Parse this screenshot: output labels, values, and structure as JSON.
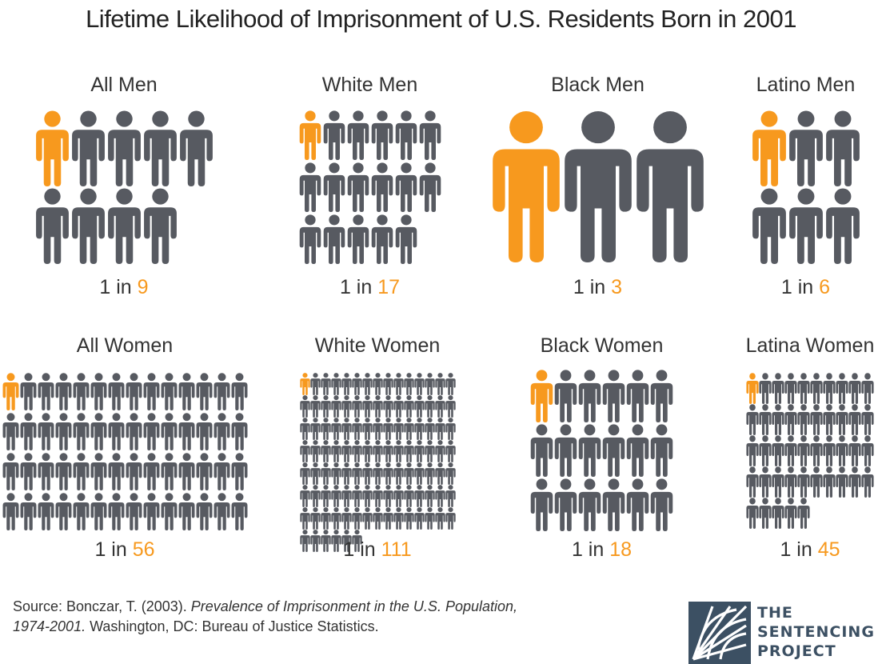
{
  "title": "Lifetime Likelihood of Imprisonment of U.S. Residents Born in 2001",
  "colors": {
    "highlight": "#F7991E",
    "figure": "#575A61",
    "logo": "#3C5063",
    "text": "#333333"
  },
  "chart_data": [
    {
      "type": "pictogram",
      "label": "All Men",
      "ratio_prefix": "1 in",
      "ratio_value": 9,
      "highlighted": 1,
      "total": 9
    },
    {
      "type": "pictogram",
      "label": "White Men",
      "ratio_prefix": "1 in",
      "ratio_value": 17,
      "highlighted": 1,
      "total": 17
    },
    {
      "type": "pictogram",
      "label": "Black Men",
      "ratio_prefix": "1 in",
      "ratio_value": 3,
      "highlighted": 1,
      "total": 3
    },
    {
      "type": "pictogram",
      "label": "Latino Men",
      "ratio_prefix": "1 in",
      "ratio_value": 6,
      "highlighted": 1,
      "total": 6
    },
    {
      "type": "pictogram",
      "label": "All Women",
      "ratio_prefix": "1 in",
      "ratio_value": 56,
      "highlighted": 1,
      "total": 56
    },
    {
      "type": "pictogram",
      "label": "White Women",
      "ratio_prefix": "1 in",
      "ratio_value": 111,
      "highlighted": 1,
      "total": 111
    },
    {
      "type": "pictogram",
      "label": "Black Women",
      "ratio_prefix": "1 in",
      "ratio_value": 18,
      "highlighted": 1,
      "total": 18
    },
    {
      "type": "pictogram",
      "label": "Latina Women",
      "ratio_prefix": "1 in",
      "ratio_value": 45,
      "highlighted": 1,
      "total": 45
    }
  ],
  "source": {
    "prefix": "Source: Bonczar, T. (2003). ",
    "italic_title": "Prevalence of Imprisonment in the U.S. Population,",
    "italic_years": "1974-2001.",
    "suffix": " Washington, DC: Bureau of Justice Statistics."
  },
  "logo": {
    "line1": "THE",
    "line2": "SENTENCING",
    "line3": "PROJECT"
  }
}
